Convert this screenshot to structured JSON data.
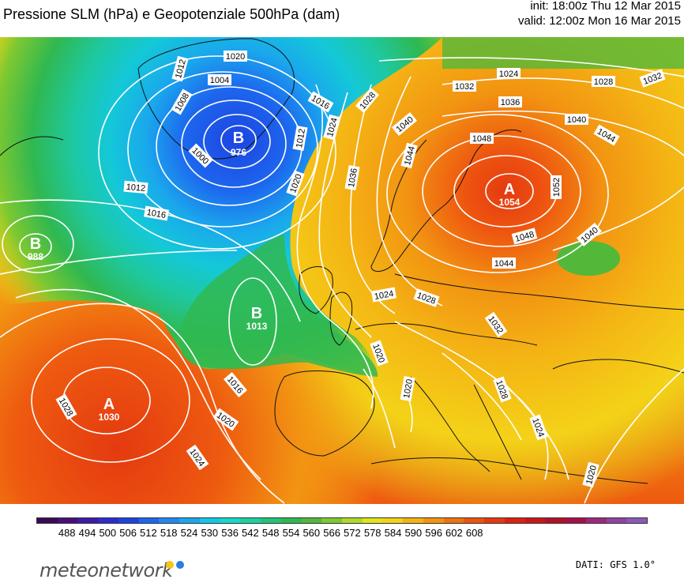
{
  "header": {
    "title": "Pressione SLM (hPa) e Geopotenziale 500hPa (dam)",
    "init": "init: 18:00z Thu 12 Mar 2015",
    "valid": "valid: 12:00z Mon 16 Mar 2015"
  },
  "map": {
    "centers": [
      {
        "type": "B",
        "value": "976"
      },
      {
        "type": "B",
        "value": "988"
      },
      {
        "type": "B",
        "value": "1013"
      },
      {
        "type": "A",
        "value": "1030"
      },
      {
        "type": "A",
        "value": "1054"
      }
    ],
    "isobar_labels": [
      "1012",
      "1004",
      "1020",
      "1008",
      "1016",
      "1000",
      "1012",
      "1020",
      "1016",
      "1012",
      "1024",
      "1028",
      "1032",
      "1036",
      "1040",
      "1044",
      "1048",
      "1052",
      "1024",
      "1028",
      "1032",
      "1036",
      "1040",
      "1044",
      "1048",
      "1040",
      "1044",
      "1024",
      "1028",
      "1032",
      "1020",
      "1020",
      "1028",
      "1024",
      "1020",
      "1016",
      "1020",
      "1024",
      "1028"
    ]
  },
  "colorbar": {
    "ticks": [
      "488",
      "494",
      "500",
      "506",
      "512",
      "518",
      "524",
      "530",
      "536",
      "542",
      "548",
      "554",
      "560",
      "566",
      "572",
      "578",
      "584",
      "590",
      "596",
      "602",
      "608"
    ],
    "colors": [
      "#3a0a55",
      "#4a0d7a",
      "#3e1aa8",
      "#2d2ccc",
      "#1e44e0",
      "#1d66ee",
      "#2388f0",
      "#1aa8ec",
      "#12c8e6",
      "#18d8c8",
      "#1ed0a0",
      "#22c478",
      "#30b850",
      "#52b83a",
      "#80c830",
      "#b0d82a",
      "#e2e41c",
      "#f4d218",
      "#f4b414",
      "#f29412",
      "#ee7410",
      "#ea5410",
      "#e43a10",
      "#dc2210",
      "#c81818",
      "#b4102a",
      "#a8104a",
      "#9a2a7a",
      "#8e44a4",
      "#8a5ab8"
    ]
  },
  "footer": {
    "logo": "meteonetwork",
    "dati": "DATI: GFS 1.0°",
    "dot_colors": [
      "#f5c518",
      "#2a7de1"
    ]
  }
}
